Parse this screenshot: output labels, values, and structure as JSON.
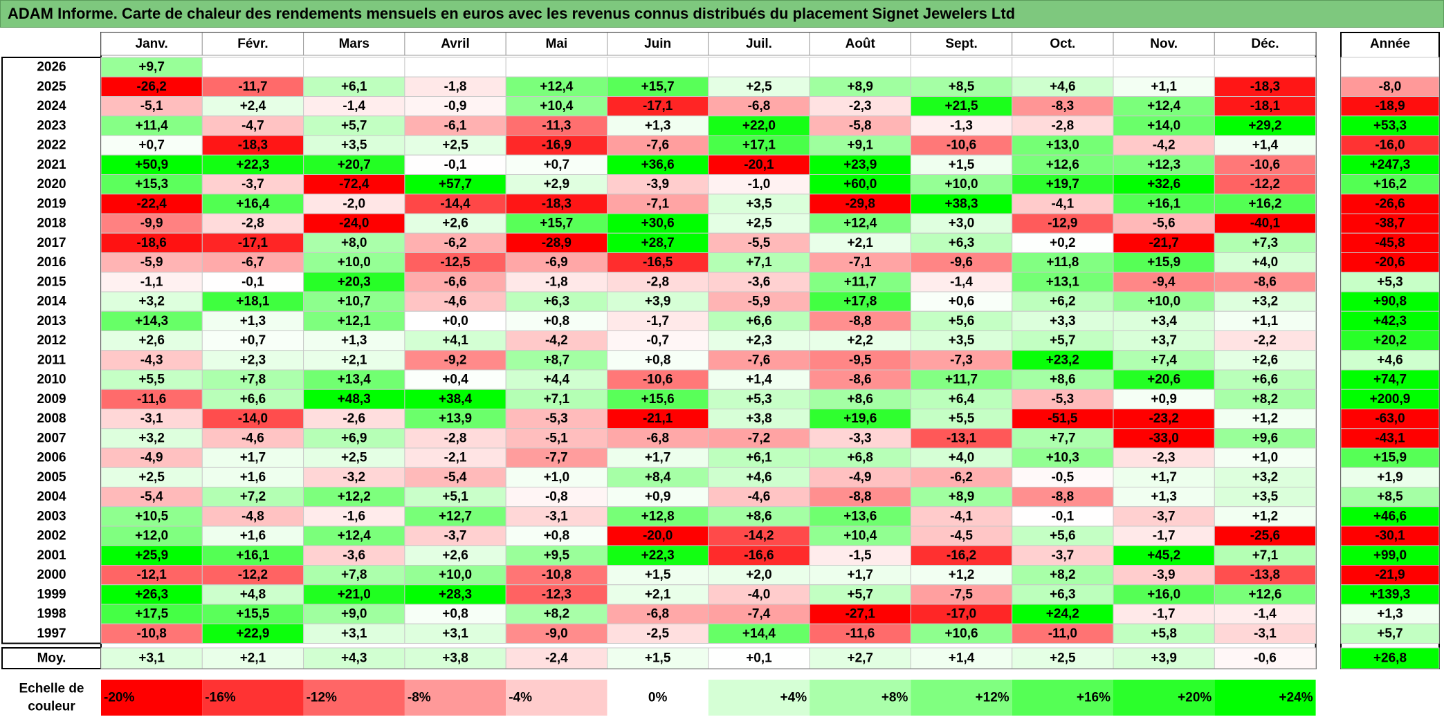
{
  "title": "ADAM Informe. Carte de chaleur des rendements mensuels en euros avec les revenus connus distribués du placement Signet Jewelers Ltd",
  "colors": {
    "strong_negative": "#ff0000",
    "neutral": "#ffffff",
    "strong_positive": "#00ff00",
    "title_background": "#7ec87e"
  },
  "chart_data": {
    "type": "heatmap",
    "title": "ADAM Informe. Carte de chaleur des rendements mensuels en euros avec les revenus connus distribués du placement Signet Jewelers Ltd",
    "months": [
      "Janv.",
      "Févr.",
      "Mars",
      "Avril",
      "Mai",
      "Juin",
      "Juil.",
      "Août",
      "Sept.",
      "Oct.",
      "Nov.",
      "Déc."
    ],
    "annual_header": "Année",
    "years": [
      "2026",
      "2025",
      "2024",
      "2023",
      "2022",
      "2021",
      "2020",
      "2019",
      "2018",
      "2017",
      "2016",
      "2015",
      "2014",
      "2013",
      "2012",
      "2011",
      "2010",
      "2009",
      "2008",
      "2007",
      "2006",
      "2005",
      "2004",
      "2003",
      "2002",
      "2001",
      "2000",
      "1999",
      "1998",
      "1997"
    ],
    "values": [
      [
        "+9,7",
        null,
        null,
        null,
        null,
        null,
        null,
        null,
        null,
        null,
        null,
        null
      ],
      [
        "-26,2",
        "-11,7",
        "+6,1",
        "-1,8",
        "+12,4",
        "+15,7",
        "+2,5",
        "+8,9",
        "+8,5",
        "+4,6",
        "+1,1",
        "-18,3"
      ],
      [
        "-5,1",
        "+2,4",
        "-1,4",
        "-0,9",
        "+10,4",
        "-17,1",
        "-6,8",
        "-2,3",
        "+21,5",
        "-8,3",
        "+12,4",
        "-18,1"
      ],
      [
        "+11,4",
        "-4,7",
        "+5,7",
        "-6,1",
        "-11,3",
        "+1,3",
        "+22,0",
        "-5,8",
        "-1,3",
        "-2,8",
        "+14,0",
        "+29,2"
      ],
      [
        "+0,7",
        "-18,3",
        "+3,5",
        "+2,5",
        "-16,9",
        "-7,6",
        "+17,1",
        "+9,1",
        "-10,6",
        "+13,0",
        "-4,2",
        "+1,4"
      ],
      [
        "+50,9",
        "+22,3",
        "+20,7",
        "-0,1",
        "+0,7",
        "+36,6",
        "-20,1",
        "+23,9",
        "+1,5",
        "+12,6",
        "+12,3",
        "-10,6"
      ],
      [
        "+15,3",
        "-3,7",
        "-72,4",
        "+57,7",
        "+2,9",
        "-3,9",
        "-1,0",
        "+60,0",
        "+10,0",
        "+19,7",
        "+32,6",
        "-12,2"
      ],
      [
        "-22,4",
        "+16,4",
        "-2,0",
        "-14,4",
        "-18,3",
        "-7,1",
        "+3,5",
        "-29,8",
        "+38,3",
        "-4,1",
        "+16,1",
        "+16,2"
      ],
      [
        "-9,9",
        "-2,8",
        "-24,0",
        "+2,6",
        "+15,7",
        "+30,6",
        "+2,5",
        "+12,4",
        "+3,0",
        "-12,9",
        "-5,6",
        "-40,1"
      ],
      [
        "-18,6",
        "-17,1",
        "+8,0",
        "-6,2",
        "-28,9",
        "+28,7",
        "-5,5",
        "+2,1",
        "+6,3",
        "+0,2",
        "-21,7",
        "+7,3"
      ],
      [
        "-5,9",
        "-6,7",
        "+10,0",
        "-12,5",
        "-6,9",
        "-16,5",
        "+7,1",
        "-7,1",
        "-9,6",
        "+11,8",
        "+15,9",
        "+4,0"
      ],
      [
        "-1,1",
        "-0,1",
        "+20,3",
        "-6,6",
        "-1,8",
        "-2,8",
        "-3,6",
        "+11,7",
        "-1,4",
        "+13,1",
        "-9,4",
        "-8,6"
      ],
      [
        "+3,2",
        "+18,1",
        "+10,7",
        "-4,6",
        "+6,3",
        "+3,9",
        "-5,9",
        "+17,8",
        "+0,6",
        "+6,2",
        "+10,0",
        "+3,2"
      ],
      [
        "+14,3",
        "+1,3",
        "+12,1",
        "+0,0",
        "+0,8",
        "-1,7",
        "+6,6",
        "-8,8",
        "+5,6",
        "+3,3",
        "+3,4",
        "+1,1"
      ],
      [
        "+2,6",
        "+0,7",
        "+1,3",
        "+4,1",
        "-4,2",
        "-0,7",
        "+2,3",
        "+2,2",
        "+3,5",
        "+5,7",
        "+3,7",
        "-2,2"
      ],
      [
        "-4,3",
        "+2,3",
        "+2,1",
        "-9,2",
        "+8,7",
        "+0,8",
        "-7,6",
        "-9,5",
        "-7,3",
        "+23,2",
        "+7,4",
        "+2,6"
      ],
      [
        "+5,5",
        "+7,8",
        "+13,4",
        "+0,4",
        "+4,4",
        "-10,6",
        "+1,4",
        "-8,6",
        "+11,7",
        "+8,6",
        "+20,6",
        "+6,6"
      ],
      [
        "-11,6",
        "+6,6",
        "+48,3",
        "+38,4",
        "+7,1",
        "+15,6",
        "+5,3",
        "+8,6",
        "+6,4",
        "-5,3",
        "+0,9",
        "+8,2"
      ],
      [
        "-3,1",
        "-14,0",
        "-2,6",
        "+13,9",
        "-5,3",
        "-21,1",
        "+3,8",
        "+19,6",
        "+5,5",
        "-51,5",
        "-23,2",
        "+1,2"
      ],
      [
        "+3,2",
        "-4,6",
        "+6,9",
        "-2,8",
        "-5,1",
        "-6,8",
        "-7,2",
        "-3,3",
        "-13,1",
        "+7,7",
        "-33,0",
        "+9,6"
      ],
      [
        "-4,9",
        "+1,7",
        "+2,5",
        "-2,1",
        "-7,7",
        "+1,7",
        "+6,1",
        "+6,8",
        "+4,0",
        "+10,3",
        "-2,3",
        "+1,0"
      ],
      [
        "+2,5",
        "+1,6",
        "-3,2",
        "-5,4",
        "+1,0",
        "+8,4",
        "+4,6",
        "-4,9",
        "-6,2",
        "-0,5",
        "+1,7",
        "+3,2"
      ],
      [
        "-5,4",
        "+7,2",
        "+12,2",
        "+5,1",
        "-0,8",
        "+0,9",
        "-4,6",
        "-8,8",
        "+8,9",
        "-8,8",
        "+1,3",
        "+3,5"
      ],
      [
        "+10,5",
        "-4,8",
        "-1,6",
        "+12,7",
        "-3,1",
        "+12,8",
        "+8,6",
        "+13,6",
        "-4,1",
        "-0,1",
        "-3,7",
        "+1,2"
      ],
      [
        "+12,0",
        "+1,6",
        "+12,4",
        "-3,7",
        "+0,8",
        "-20,0",
        "-14,2",
        "+10,4",
        "-4,5",
        "+5,6",
        "-1,7",
        "-25,6"
      ],
      [
        "+25,9",
        "+16,1",
        "-3,6",
        "+2,6",
        "+9,5",
        "+22,3",
        "-16,6",
        "-1,5",
        "-16,2",
        "-3,7",
        "+45,2",
        "+7,1"
      ],
      [
        "-12,1",
        "-12,2",
        "+7,8",
        "+10,0",
        "-10,8",
        "+1,5",
        "+2,0",
        "+1,7",
        "+1,2",
        "+8,2",
        "-3,9",
        "-13,8"
      ],
      [
        "+26,3",
        "+4,8",
        "+21,0",
        "+28,3",
        "-12,3",
        "+2,1",
        "-4,0",
        "+5,7",
        "-7,5",
        "+6,3",
        "+16,0",
        "+12,6"
      ],
      [
        "+17,5",
        "+15,5",
        "+9,0",
        "+0,8",
        "+8,2",
        "-6,8",
        "-7,4",
        "-27,1",
        "-17,0",
        "+24,2",
        "-1,7",
        "-1,4"
      ],
      [
        "-10,8",
        "+22,9",
        "+3,1",
        "+3,1",
        "-9,0",
        "-2,5",
        "+14,4",
        "-11,6",
        "+10,6",
        "-11,0",
        "+5,8",
        "-3,1"
      ]
    ],
    "annual": [
      null,
      "-8,0",
      "-18,9",
      "+53,3",
      "-16,0",
      "+247,3",
      "+16,2",
      "-26,6",
      "-38,7",
      "-45,8",
      "-20,6",
      "+5,3",
      "+90,8",
      "+42,3",
      "+20,2",
      "+4,6",
      "+74,7",
      "+200,9",
      "-63,0",
      "-43,1",
      "+15,9",
      "+1,9",
      "+8,5",
      "+46,6",
      "-30,1",
      "+99,0",
      "-21,9",
      "+139,3",
      "+1,3",
      "+5,7"
    ],
    "average_label": "Moy.",
    "average": [
      "+3,1",
      "+2,1",
      "+4,3",
      "+3,8",
      "-2,4",
      "+1,5",
      "+0,1",
      "+2,7",
      "+1,4",
      "+2,5",
      "+3,9",
      "-0,6"
    ],
    "average_annual": "+26,8",
    "scale_label_line1": "Echelle de",
    "scale_label_line2": "couleur",
    "scale": [
      "-20%",
      "-16%",
      "-12%",
      "-8%",
      "-4%",
      "0%",
      "+4%",
      "+8%",
      "+12%",
      "+16%",
      "+20%",
      "+24%"
    ]
  }
}
